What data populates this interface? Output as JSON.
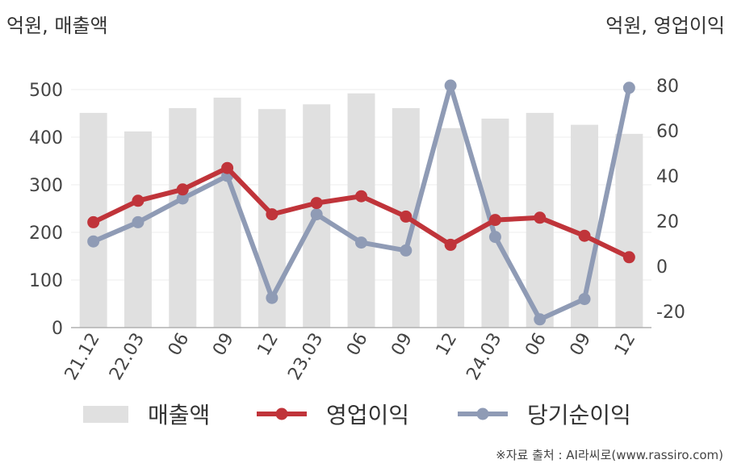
{
  "chart_data": {
    "type": "bar",
    "left_unit_label": "억원, 매출액",
    "right_unit_label": "억원, 영업이익",
    "categories": [
      "21.12",
      "22.03",
      "06",
      "09",
      "12",
      "23.03",
      "06",
      "09",
      "12",
      "24.03",
      "06",
      "09",
      "12"
    ],
    "y_left": {
      "range": [
        0,
        500
      ],
      "ticks": [
        "0",
        "100",
        "200",
        "300",
        "400",
        "500"
      ]
    },
    "y_right": {
      "range": [
        -27,
        80
      ],
      "ticks": [
        "-20",
        "0",
        "20",
        "40",
        "60",
        "80"
      ]
    },
    "series": [
      {
        "name": "매출액",
        "type": "bar",
        "axis": "left",
        "color": "#e0e0e0",
        "values": [
          451,
          412,
          461,
          483,
          459,
          469,
          492,
          461,
          419,
          439,
          451,
          426,
          407
        ]
      },
      {
        "name": "영업이익",
        "type": "line",
        "axis": "right",
        "color": "#c0343a",
        "values": [
          19.5,
          29,
          34,
          43.5,
          23,
          28,
          31,
          22,
          9.5,
          20.5,
          21.5,
          13.5,
          4
        ]
      },
      {
        "name": "당기순이익",
        "type": "line",
        "axis": "right",
        "color": "#8f9bb5",
        "values": [
          11,
          19.5,
          30,
          40,
          -14,
          23,
          10.5,
          7,
          80,
          13,
          -23.5,
          -14.5,
          79
        ]
      }
    ],
    "legend": [
      "매출액",
      "영업이익",
      "당기순이익"
    ],
    "legend_position": "bottom",
    "grid": true
  },
  "source": "※자료 출처 : AI라씨로(www.rassiro.com)"
}
